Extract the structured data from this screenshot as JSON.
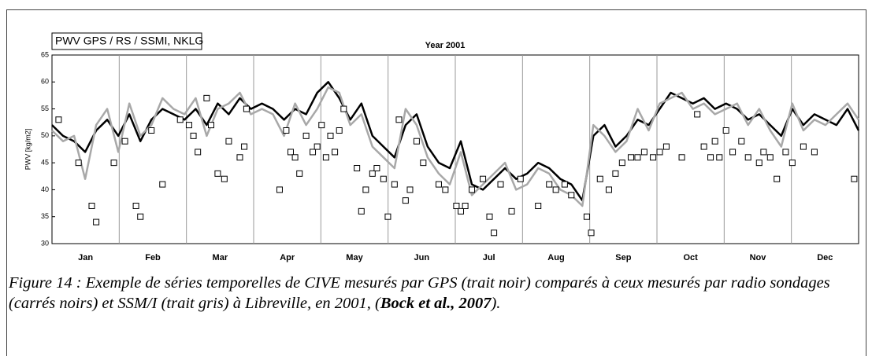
{
  "chart_data": {
    "type": "line",
    "title": "PWV GPS / RS / SSMI, NKLG",
    "subtitle": "Year 2001",
    "ylabel": "PWV [kg/m2]",
    "categories": [
      "Jan",
      "Feb",
      "Mar",
      "Apr",
      "May",
      "Jun",
      "Jul",
      "Aug",
      "Sep",
      "Oct",
      "Nov",
      "Dec"
    ],
    "xlim": [
      0,
      365
    ],
    "ylim": [
      30,
      65
    ],
    "yticks": [
      30,
      35,
      40,
      45,
      50,
      55,
      60,
      65
    ],
    "x": [
      0,
      5,
      10,
      15,
      20,
      25,
      30,
      35,
      40,
      45,
      50,
      55,
      60,
      65,
      70,
      75,
      80,
      85,
      90,
      95,
      100,
      105,
      110,
      115,
      120,
      125,
      130,
      135,
      140,
      145,
      150,
      155,
      160,
      165,
      170,
      175,
      180,
      185,
      190,
      195,
      200,
      205,
      210,
      215,
      220,
      225,
      230,
      235,
      240,
      245,
      250,
      255,
      260,
      265,
      270,
      275,
      280,
      285,
      290,
      295,
      300,
      305,
      310,
      315,
      320,
      325,
      330,
      335,
      340,
      345,
      350,
      355,
      360,
      365
    ],
    "series": [
      {
        "color": "#000000",
        "values": [
          52,
          50,
          49,
          47,
          51,
          53,
          50,
          54,
          49,
          53,
          55,
          54,
          53,
          55,
          52,
          56,
          54,
          57,
          55,
          56,
          55,
          53,
          55,
          54,
          58,
          60,
          57,
          53,
          56,
          50,
          48,
          46,
          52,
          54,
          48,
          45,
          44,
          49,
          41,
          40,
          42,
          44,
          42,
          43,
          45,
          44,
          42,
          41,
          38,
          50,
          52,
          48,
          50,
          53,
          52,
          55,
          58,
          57,
          56,
          57,
          55,
          56,
          55,
          53,
          54,
          52,
          50,
          55,
          52,
          54,
          53,
          52,
          55,
          51
        ]
      },
      {
        "color": "#a8a8a8",
        "values": [
          51,
          49,
          50,
          42,
          52,
          55,
          47,
          56,
          50,
          52,
          57,
          55,
          54,
          57,
          50,
          55,
          56,
          58,
          54,
          55,
          54,
          50,
          56,
          52,
          55,
          59,
          58,
          52,
          54,
          48,
          46,
          44,
          55,
          52,
          46,
          43,
          41,
          47,
          39,
          41,
          43,
          45,
          40,
          41,
          44,
          43,
          40,
          39,
          37,
          52,
          50,
          47,
          49,
          55,
          51,
          56,
          57,
          58,
          55,
          56,
          54,
          55,
          56,
          52,
          55,
          51,
          48,
          56,
          51,
          53,
          52,
          54,
          56,
          53
        ]
      },
      {
        "type": "scatter",
        "marker": "square",
        "color": "#000000",
        "x": [
          3,
          12,
          18,
          20,
          28,
          33,
          38,
          40,
          45,
          50,
          58,
          62,
          64,
          66,
          70,
          72,
          75,
          78,
          80,
          85,
          87,
          88,
          103,
          106,
          108,
          110,
          112,
          115,
          118,
          120,
          122,
          124,
          126,
          128,
          130,
          132,
          138,
          140,
          142,
          145,
          147,
          150,
          152,
          155,
          157,
          160,
          162,
          165,
          168,
          175,
          178,
          183,
          185,
          187,
          190,
          195,
          198,
          200,
          203,
          208,
          212,
          220,
          225,
          228,
          232,
          235,
          242,
          244,
          248,
          252,
          255,
          258,
          262,
          265,
          268,
          272,
          275,
          278,
          285,
          292,
          295,
          298,
          300,
          302,
          305,
          308,
          312,
          315,
          320,
          322,
          325,
          328,
          332,
          335,
          340,
          345,
          363
        ],
        "values": [
          53,
          45,
          37,
          34,
          45,
          49,
          37,
          35,
          51,
          41,
          53,
          52,
          50,
          47,
          57,
          52,
          43,
          42,
          49,
          46,
          48,
          55,
          40,
          51,
          47,
          46,
          43,
          50,
          47,
          48,
          52,
          46,
          50,
          47,
          51,
          55,
          44,
          36,
          40,
          43,
          44,
          42,
          35,
          41,
          53,
          38,
          40,
          49,
          45,
          41,
          40,
          37,
          36,
          37,
          40,
          42,
          35,
          32,
          41,
          36,
          42,
          37,
          41,
          40,
          41,
          39,
          35,
          32,
          42,
          40,
          43,
          45,
          46,
          46,
          47,
          46,
          47,
          48,
          46,
          54,
          48,
          46,
          49,
          46,
          51,
          47,
          49,
          46,
          45,
          47,
          46,
          42,
          47,
          45,
          48,
          47,
          42
        ]
      }
    ]
  },
  "caption": {
    "text": "Figure 14 : Exemple de séries temporelles de CIVE mesurés par GPS (trait noir) comparés à ceux mesurés par radio sondages (carrés noirs) et SSM/I (trait gris) à Libreville, en 2001, (",
    "citation": "Bock et al., 2007",
    "end": ")."
  }
}
